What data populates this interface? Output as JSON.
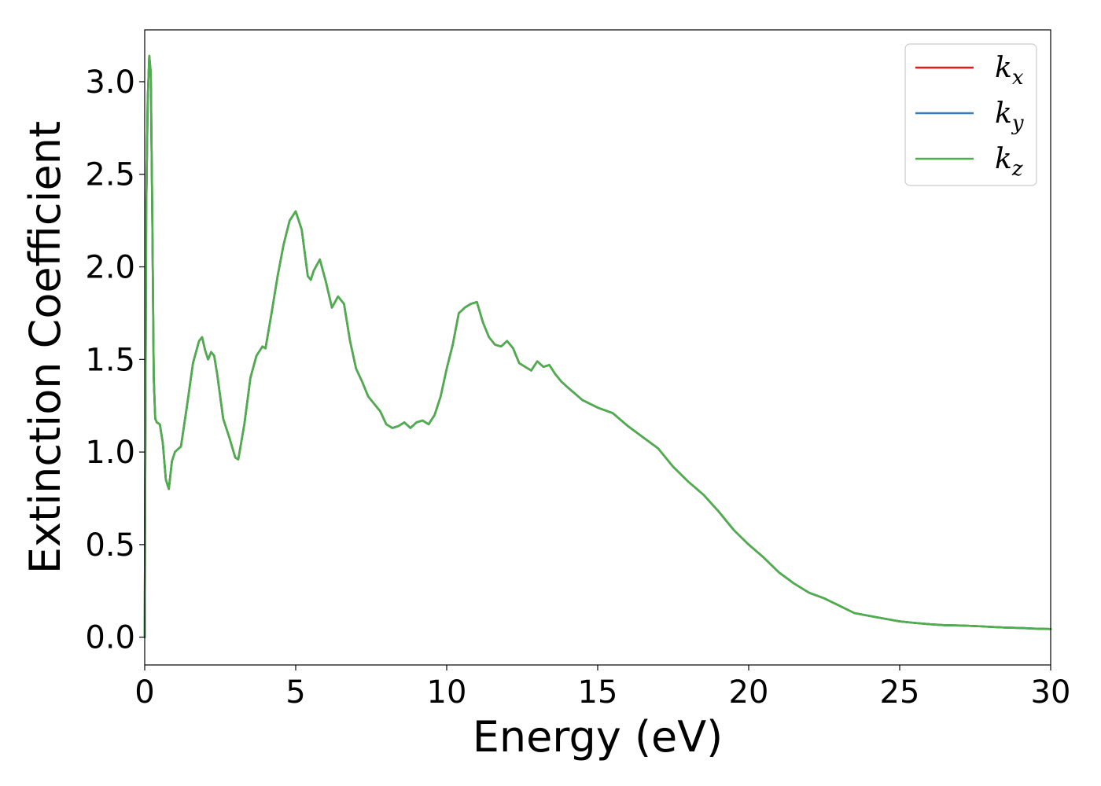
{
  "chart_data": {
    "type": "line",
    "xlabel": "Energy (eV)",
    "ylabel": "Extinction Coefficient",
    "xlim": [
      0,
      30
    ],
    "ylim": [
      -0.15,
      3.28
    ],
    "xticks": [
      "0",
      "5",
      "10",
      "15",
      "20",
      "25",
      "30"
    ],
    "yticks": [
      "0.0",
      "0.5",
      "1.0",
      "1.5",
      "2.0",
      "2.5",
      "3.0"
    ],
    "grid": false,
    "legend_position": "top-right",
    "series": [
      {
        "name": "k_x",
        "base": "k",
        "sub": "x",
        "color": "#e41a1c",
        "x": [
          0,
          0.05,
          0.1,
          0.15,
          0.2,
          0.25,
          0.3,
          0.35,
          0.4,
          0.5,
          0.6,
          0.7,
          0.8,
          0.9,
          1.0,
          1.2,
          1.4,
          1.6,
          1.8,
          1.9,
          2.0,
          2.1,
          2.2,
          2.3,
          2.4,
          2.6,
          2.8,
          3.0,
          3.1,
          3.3,
          3.5,
          3.7,
          3.9,
          4.0,
          4.2,
          4.4,
          4.6,
          4.8,
          5.0,
          5.2,
          5.4,
          5.5,
          5.6,
          5.8,
          6.0,
          6.2,
          6.4,
          6.6,
          6.8,
          7.0,
          7.2,
          7.4,
          7.6,
          7.8,
          8.0,
          8.2,
          8.4,
          8.6,
          8.8,
          9.0,
          9.2,
          9.4,
          9.6,
          9.8,
          10.0,
          10.2,
          10.4,
          10.6,
          10.8,
          11.0,
          11.2,
          11.4,
          11.6,
          11.8,
          12.0,
          12.2,
          12.4,
          12.6,
          12.8,
          13.0,
          13.2,
          13.4,
          13.6,
          13.8,
          14.0,
          14.5,
          15.0,
          15.5,
          16.0,
          16.5,
          17.0,
          17.5,
          18.0,
          18.5,
          19.0,
          19.5,
          20.0,
          20.5,
          21.0,
          21.5,
          22.0,
          22.5,
          23.0,
          23.5,
          24.0,
          24.5,
          25.0,
          25.5,
          26.0,
          26.5,
          27.0,
          27.5,
          28.0,
          28.5,
          29.0,
          29.5,
          30.0
        ],
        "y": [
          0.0,
          2.3,
          2.9,
          3.14,
          3.05,
          2.3,
          1.4,
          1.18,
          1.16,
          1.15,
          1.05,
          0.85,
          0.8,
          0.95,
          1.0,
          1.03,
          1.25,
          1.48,
          1.6,
          1.62,
          1.55,
          1.5,
          1.54,
          1.52,
          1.42,
          1.18,
          1.08,
          0.97,
          0.96,
          1.15,
          1.4,
          1.52,
          1.57,
          1.56,
          1.75,
          1.95,
          2.12,
          2.25,
          2.3,
          2.2,
          1.95,
          1.93,
          1.98,
          2.04,
          1.92,
          1.78,
          1.84,
          1.8,
          1.6,
          1.45,
          1.38,
          1.3,
          1.26,
          1.22,
          1.15,
          1.13,
          1.14,
          1.16,
          1.13,
          1.16,
          1.17,
          1.15,
          1.2,
          1.3,
          1.45,
          1.58,
          1.75,
          1.78,
          1.8,
          1.81,
          1.7,
          1.62,
          1.58,
          1.57,
          1.6,
          1.56,
          1.48,
          1.46,
          1.44,
          1.49,
          1.46,
          1.47,
          1.42,
          1.38,
          1.35,
          1.28,
          1.24,
          1.21,
          1.14,
          1.08,
          1.02,
          0.92,
          0.84,
          0.77,
          0.68,
          0.58,
          0.5,
          0.43,
          0.35,
          0.29,
          0.24,
          0.21,
          0.17,
          0.13,
          0.115,
          0.1,
          0.085,
          0.077,
          0.07,
          0.065,
          0.063,
          0.06,
          0.056,
          0.052,
          0.05,
          0.046,
          0.044
        ]
      },
      {
        "name": "k_y",
        "base": "k",
        "sub": "y",
        "color": "#377eb8",
        "x": [
          0,
          0.05,
          0.1,
          0.15,
          0.2,
          0.25,
          0.3,
          0.35,
          0.4,
          0.5,
          0.6,
          0.7,
          0.8,
          0.9,
          1.0,
          1.2,
          1.4,
          1.6,
          1.8,
          1.9,
          2.0,
          2.1,
          2.2,
          2.3,
          2.4,
          2.6,
          2.8,
          3.0,
          3.1,
          3.3,
          3.5,
          3.7,
          3.9,
          4.0,
          4.2,
          4.4,
          4.6,
          4.8,
          5.0,
          5.2,
          5.4,
          5.5,
          5.6,
          5.8,
          6.0,
          6.2,
          6.4,
          6.6,
          6.8,
          7.0,
          7.2,
          7.4,
          7.6,
          7.8,
          8.0,
          8.2,
          8.4,
          8.6,
          8.8,
          9.0,
          9.2,
          9.4,
          9.6,
          9.8,
          10.0,
          10.2,
          10.4,
          10.6,
          10.8,
          11.0,
          11.2,
          11.4,
          11.6,
          11.8,
          12.0,
          12.2,
          12.4,
          12.6,
          12.8,
          13.0,
          13.2,
          13.4,
          13.6,
          13.8,
          14.0,
          14.5,
          15.0,
          15.5,
          16.0,
          16.5,
          17.0,
          17.5,
          18.0,
          18.5,
          19.0,
          19.5,
          20.0,
          20.5,
          21.0,
          21.5,
          22.0,
          22.5,
          23.0,
          23.5,
          24.0,
          24.5,
          25.0,
          25.5,
          26.0,
          26.5,
          27.0,
          27.5,
          28.0,
          28.5,
          29.0,
          29.5,
          30.0
        ],
        "y": [
          0.0,
          2.3,
          2.9,
          3.14,
          3.05,
          2.3,
          1.4,
          1.18,
          1.16,
          1.15,
          1.05,
          0.85,
          0.8,
          0.95,
          1.0,
          1.03,
          1.25,
          1.48,
          1.6,
          1.62,
          1.55,
          1.5,
          1.54,
          1.52,
          1.42,
          1.18,
          1.08,
          0.97,
          0.96,
          1.15,
          1.4,
          1.52,
          1.57,
          1.56,
          1.75,
          1.95,
          2.12,
          2.25,
          2.3,
          2.2,
          1.95,
          1.93,
          1.98,
          2.04,
          1.92,
          1.78,
          1.84,
          1.8,
          1.6,
          1.45,
          1.38,
          1.3,
          1.26,
          1.22,
          1.15,
          1.13,
          1.14,
          1.16,
          1.13,
          1.16,
          1.17,
          1.15,
          1.2,
          1.3,
          1.45,
          1.58,
          1.75,
          1.78,
          1.8,
          1.81,
          1.7,
          1.62,
          1.58,
          1.57,
          1.6,
          1.56,
          1.48,
          1.46,
          1.44,
          1.49,
          1.46,
          1.47,
          1.42,
          1.38,
          1.35,
          1.28,
          1.24,
          1.21,
          1.14,
          1.08,
          1.02,
          0.92,
          0.84,
          0.77,
          0.68,
          0.58,
          0.5,
          0.43,
          0.35,
          0.29,
          0.24,
          0.21,
          0.17,
          0.13,
          0.115,
          0.1,
          0.085,
          0.077,
          0.07,
          0.065,
          0.063,
          0.06,
          0.056,
          0.052,
          0.05,
          0.046,
          0.044
        ]
      },
      {
        "name": "k_z",
        "base": "k",
        "sub": "z",
        "color": "#4daf4a",
        "x": [
          0,
          0.05,
          0.1,
          0.15,
          0.2,
          0.25,
          0.3,
          0.35,
          0.4,
          0.5,
          0.6,
          0.7,
          0.8,
          0.9,
          1.0,
          1.2,
          1.4,
          1.6,
          1.8,
          1.9,
          2.0,
          2.1,
          2.2,
          2.3,
          2.4,
          2.6,
          2.8,
          3.0,
          3.1,
          3.3,
          3.5,
          3.7,
          3.9,
          4.0,
          4.2,
          4.4,
          4.6,
          4.8,
          5.0,
          5.2,
          5.4,
          5.5,
          5.6,
          5.8,
          6.0,
          6.2,
          6.4,
          6.6,
          6.8,
          7.0,
          7.2,
          7.4,
          7.6,
          7.8,
          8.0,
          8.2,
          8.4,
          8.6,
          8.8,
          9.0,
          9.2,
          9.4,
          9.6,
          9.8,
          10.0,
          10.2,
          10.4,
          10.6,
          10.8,
          11.0,
          11.2,
          11.4,
          11.6,
          11.8,
          12.0,
          12.2,
          12.4,
          12.6,
          12.8,
          13.0,
          13.2,
          13.4,
          13.6,
          13.8,
          14.0,
          14.5,
          15.0,
          15.5,
          16.0,
          16.5,
          17.0,
          17.5,
          18.0,
          18.5,
          19.0,
          19.5,
          20.0,
          20.5,
          21.0,
          21.5,
          22.0,
          22.5,
          23.0,
          23.5,
          24.0,
          24.5,
          25.0,
          25.5,
          26.0,
          26.5,
          27.0,
          27.5,
          28.0,
          28.5,
          29.0,
          29.5,
          30.0
        ],
        "y": [
          0.0,
          2.3,
          2.9,
          3.14,
          3.05,
          2.3,
          1.4,
          1.18,
          1.16,
          1.15,
          1.05,
          0.85,
          0.8,
          0.95,
          1.0,
          1.03,
          1.25,
          1.48,
          1.6,
          1.62,
          1.55,
          1.5,
          1.54,
          1.52,
          1.42,
          1.18,
          1.08,
          0.97,
          0.96,
          1.15,
          1.4,
          1.52,
          1.57,
          1.56,
          1.75,
          1.95,
          2.12,
          2.25,
          2.3,
          2.2,
          1.95,
          1.93,
          1.98,
          2.04,
          1.92,
          1.78,
          1.84,
          1.8,
          1.6,
          1.45,
          1.38,
          1.3,
          1.26,
          1.22,
          1.15,
          1.13,
          1.14,
          1.16,
          1.13,
          1.16,
          1.17,
          1.15,
          1.2,
          1.3,
          1.45,
          1.58,
          1.75,
          1.78,
          1.8,
          1.81,
          1.7,
          1.62,
          1.58,
          1.57,
          1.6,
          1.56,
          1.48,
          1.46,
          1.44,
          1.49,
          1.46,
          1.47,
          1.42,
          1.38,
          1.35,
          1.28,
          1.24,
          1.21,
          1.14,
          1.08,
          1.02,
          0.92,
          0.84,
          0.77,
          0.68,
          0.58,
          0.5,
          0.43,
          0.35,
          0.29,
          0.24,
          0.21,
          0.17,
          0.13,
          0.115,
          0.1,
          0.085,
          0.077,
          0.07,
          0.065,
          0.063,
          0.06,
          0.056,
          0.052,
          0.05,
          0.046,
          0.044
        ]
      }
    ]
  }
}
